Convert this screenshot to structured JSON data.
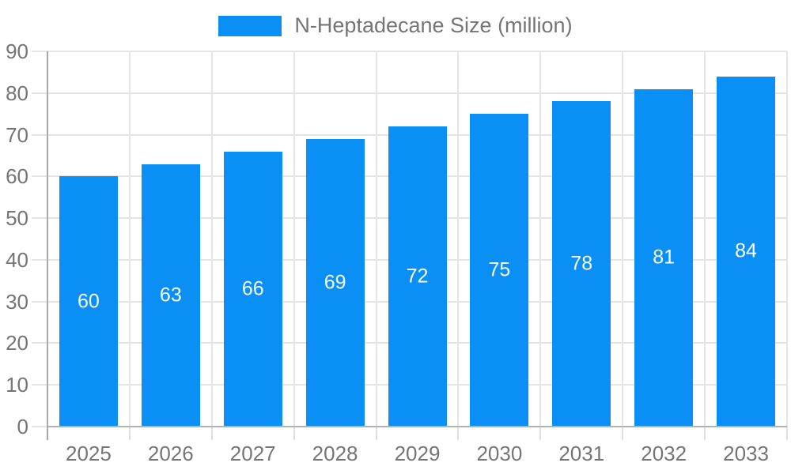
{
  "legend": {
    "label": "N-Heptadecane Size (million)"
  },
  "chart_data": {
    "type": "bar",
    "title": "N-Heptadecane Size (million)",
    "categories": [
      "2025",
      "2026",
      "2027",
      "2028",
      "2029",
      "2030",
      "2031",
      "2032",
      "2033"
    ],
    "series": [
      {
        "name": "N-Heptadecane Size (million)",
        "values": [
          60,
          63,
          66,
          69,
          72,
          75,
          78,
          81,
          84
        ]
      }
    ],
    "value_labels_shown": true,
    "xlabel": "",
    "ylabel": "",
    "ylim": [
      0,
      90
    ],
    "y_ticks": [
      0,
      10,
      20,
      30,
      40,
      50,
      60,
      70,
      80,
      90
    ],
    "grid": true,
    "legend_position": "top-center",
    "colors": {
      "bar": "#0a90f5",
      "value_label": "#ffffff",
      "axis_text": "#757575",
      "gridline": "#e4e4e4",
      "x_tick": "#e0e0e0",
      "y_axis_line": "#a8a8a8",
      "baseline": "#b3b3b3",
      "background": "#ffffff"
    }
  }
}
